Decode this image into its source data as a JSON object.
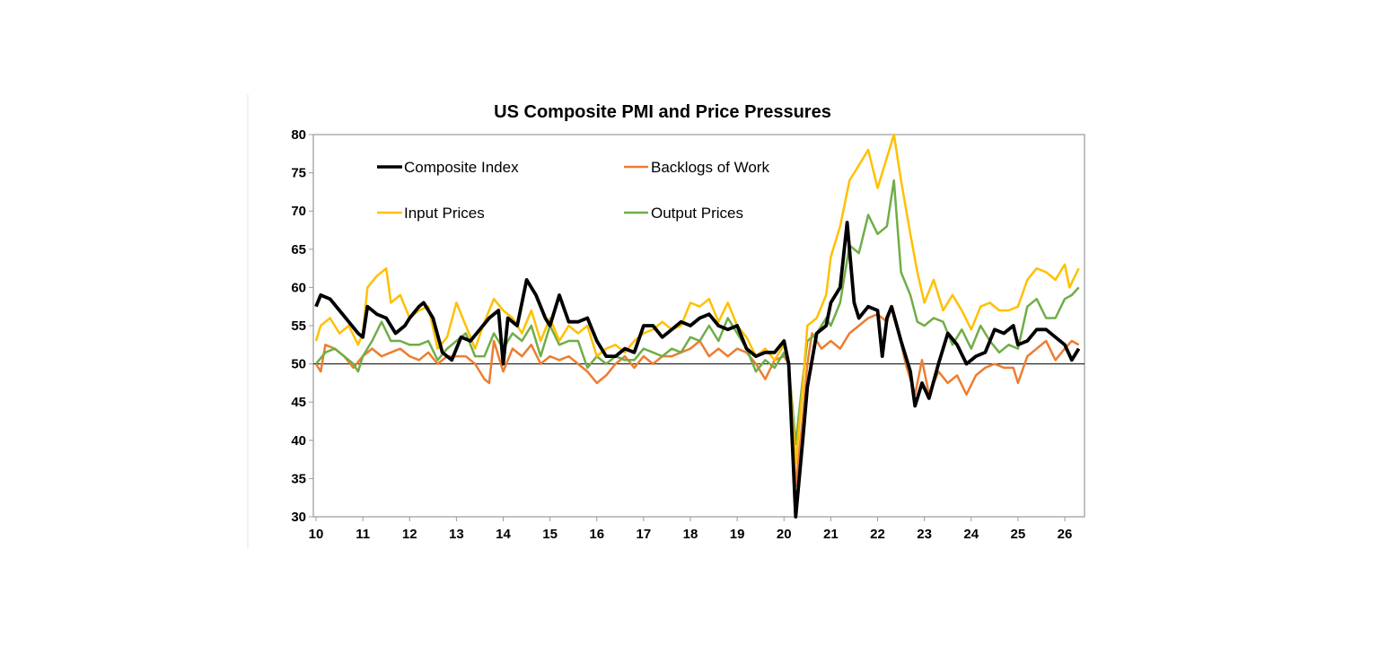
{
  "chart_data": {
    "type": "line",
    "title": "US Composite PMI and Price Pressures",
    "xlabel": "",
    "ylabel": "",
    "xlim": [
      9.94,
      26.4
    ],
    "ylim": [
      30,
      80
    ],
    "x_ticks": [
      "10",
      "11",
      "12",
      "13",
      "14",
      "15",
      "16",
      "17",
      "18",
      "19",
      "20",
      "21",
      "22",
      "23",
      "24",
      "25",
      "26"
    ],
    "y_ticks": [
      "30",
      "35",
      "40",
      "45",
      "50",
      "55",
      "60",
      "65",
      "70",
      "75",
      "80"
    ],
    "reference_line": 50,
    "grid": false,
    "legend_placement": "top-left, inside",
    "series": [
      {
        "name": "Composite Index",
        "color": "#000000",
        "x": [
          10.0,
          10.1,
          10.3,
          10.5,
          10.7,
          10.9,
          11.0,
          11.1,
          11.3,
          11.5,
          11.7,
          11.9,
          12.0,
          12.2,
          12.3,
          12.5,
          12.7,
          12.9,
          13.1,
          13.3,
          13.5,
          13.7,
          13.9,
          14.0,
          14.1,
          14.3,
          14.5,
          14.7,
          14.9,
          15.0,
          15.2,
          15.4,
          15.6,
          15.8,
          16.0,
          16.2,
          16.4,
          16.6,
          16.8,
          17.0,
          17.2,
          17.4,
          17.6,
          17.8,
          18.0,
          18.2,
          18.4,
          18.6,
          18.8,
          19.0,
          19.2,
          19.4,
          19.6,
          19.8,
          20.0,
          20.1,
          20.25,
          20.4,
          20.5,
          20.7,
          20.9,
          21.0,
          21.2,
          21.35,
          21.5,
          21.6,
          21.8,
          22.0,
          22.1,
          22.2,
          22.3,
          22.5,
          22.7,
          22.8,
          22.95,
          23.1,
          23.3,
          23.5,
          23.7,
          23.9,
          24.1,
          24.3,
          24.5,
          24.7,
          24.9,
          25.0,
          25.2,
          25.4,
          25.6,
          25.8,
          26.0,
          26.15,
          26.3
        ],
        "y": [
          57.5,
          59,
          58.5,
          57,
          55.5,
          54,
          53.5,
          57.5,
          56.5,
          56,
          54,
          55,
          56,
          57.5,
          58,
          56,
          51.5,
          50.5,
          53.5,
          53,
          54.5,
          56,
          57,
          50,
          56,
          55,
          61,
          59,
          56,
          55,
          59,
          55.5,
          55.5,
          56,
          53,
          51,
          51,
          52,
          51.5,
          55,
          55,
          53.5,
          54.5,
          55.5,
          55,
          56,
          56.5,
          55,
          54.5,
          55,
          52,
          51,
          51.5,
          51.5,
          53,
          50,
          30,
          40,
          47,
          54,
          55,
          58,
          60,
          68.5,
          58,
          56,
          57.5,
          57,
          51,
          56,
          57.5,
          53,
          49,
          44.5,
          47.5,
          45.5,
          50,
          54,
          52.5,
          50,
          51,
          51.5,
          54.5,
          54,
          55,
          52.5,
          53,
          54.5,
          54.5,
          53.5,
          52.5,
          50.5,
          52
        ]
      },
      {
        "name": "Backlogs of Work",
        "color": "#ED7D31",
        "x": [
          10.0,
          10.1,
          10.2,
          10.4,
          10.6,
          10.8,
          11.0,
          11.2,
          11.4,
          11.6,
          11.8,
          12.0,
          12.2,
          12.4,
          12.6,
          12.8,
          13.0,
          13.2,
          13.4,
          13.6,
          13.7,
          13.8,
          14.0,
          14.2,
          14.4,
          14.6,
          14.8,
          15.0,
          15.2,
          15.4,
          15.6,
          15.8,
          16.0,
          16.2,
          16.4,
          16.6,
          16.8,
          17.0,
          17.2,
          17.4,
          17.6,
          17.8,
          18.0,
          18.2,
          18.4,
          18.6,
          18.8,
          19.0,
          19.2,
          19.4,
          19.6,
          19.8,
          20.0,
          20.1,
          20.25,
          20.4,
          20.5,
          20.6,
          20.8,
          21.0,
          21.2,
          21.4,
          21.6,
          21.8,
          22.0,
          22.2,
          22.3,
          22.4,
          22.6,
          22.8,
          22.95,
          23.1,
          23.3,
          23.5,
          23.7,
          23.9,
          24.1,
          24.3,
          24.5,
          24.7,
          24.9,
          25.0,
          25.2,
          25.4,
          25.6,
          25.8,
          26.0,
          26.15,
          26.3
        ],
        "y": [
          50,
          49,
          52.5,
          52,
          51,
          49.5,
          51,
          52,
          51,
          51.5,
          52,
          51,
          50.5,
          51.5,
          50,
          51,
          51,
          51,
          50,
          48,
          47.5,
          53,
          49,
          52,
          51,
          52.5,
          50,
          51,
          50.5,
          51,
          50,
          49,
          47.5,
          48.5,
          50,
          51,
          49.5,
          51,
          50,
          51,
          51,
          51.5,
          52,
          53,
          51,
          52,
          51,
          52,
          51.5,
          50,
          48,
          50.5,
          51,
          50,
          34,
          43,
          50,
          54,
          52,
          53,
          52,
          54,
          55,
          56,
          56.5,
          55.5,
          57.5,
          55.5,
          50,
          46,
          50.5,
          46,
          49,
          47.5,
          48.5,
          46,
          48.5,
          49.5,
          50,
          49.5,
          49.5,
          47.5,
          51,
          52,
          53,
          50.5,
          52,
          53,
          52.5
        ]
      },
      {
        "name": "Input Prices",
        "color": "#FFC000",
        "x": [
          10.0,
          10.1,
          10.3,
          10.5,
          10.7,
          10.9,
          11.0,
          11.1,
          11.3,
          11.5,
          11.6,
          11.8,
          12.0,
          12.2,
          12.4,
          12.6,
          12.8,
          13.0,
          13.2,
          13.4,
          13.6,
          13.8,
          14.0,
          14.2,
          14.4,
          14.6,
          14.8,
          15.0,
          15.2,
          15.4,
          15.6,
          15.8,
          16.0,
          16.2,
          16.4,
          16.6,
          16.8,
          17.0,
          17.2,
          17.4,
          17.6,
          17.8,
          18.0,
          18.2,
          18.4,
          18.6,
          18.8,
          19.0,
          19.2,
          19.4,
          19.6,
          19.8,
          20.0,
          20.1,
          20.25,
          20.4,
          20.5,
          20.7,
          20.9,
          21.0,
          21.2,
          21.4,
          21.6,
          21.8,
          22.0,
          22.2,
          22.35,
          22.5,
          22.7,
          22.85,
          23.0,
          23.2,
          23.4,
          23.6,
          23.8,
          24.0,
          24.2,
          24.4,
          24.6,
          24.8,
          25.0,
          25.2,
          25.4,
          25.6,
          25.8,
          26.0,
          26.1,
          26.3
        ],
        "y": [
          53,
          55,
          56,
          54,
          55,
          52.5,
          54,
          60,
          61.5,
          62.5,
          58,
          59,
          56,
          57,
          57.5,
          52,
          53.5,
          58,
          55,
          52,
          55.5,
          58.5,
          57,
          56,
          54,
          57,
          53,
          56,
          53,
          55,
          54,
          55,
          51,
          52,
          52.5,
          51.5,
          53,
          54,
          54.5,
          55.5,
          54.5,
          55,
          58,
          57.5,
          58.5,
          55.5,
          58,
          55,
          53.5,
          51,
          52,
          50.5,
          52.5,
          50,
          37,
          47,
          55,
          56,
          59,
          64,
          68,
          74,
          76,
          78,
          73,
          77,
          80,
          74,
          67,
          62,
          58,
          61,
          57,
          59,
          57,
          54.5,
          57.5,
          58,
          57,
          57,
          57.5,
          61,
          62.5,
          62,
          61,
          63,
          60,
          62.5
        ]
      },
      {
        "name": "Output Prices",
        "color": "#70AD47",
        "x": [
          10.0,
          10.2,
          10.4,
          10.6,
          10.8,
          10.9,
          11.0,
          11.2,
          11.4,
          11.6,
          11.8,
          12.0,
          12.2,
          12.4,
          12.6,
          12.8,
          13.0,
          13.2,
          13.4,
          13.6,
          13.8,
          14.0,
          14.2,
          14.4,
          14.6,
          14.8,
          15.0,
          15.2,
          15.4,
          15.6,
          15.8,
          16.0,
          16.2,
          16.4,
          16.6,
          16.8,
          17.0,
          17.2,
          17.4,
          17.6,
          17.8,
          18.0,
          18.2,
          18.4,
          18.6,
          18.8,
          19.0,
          19.2,
          19.4,
          19.6,
          19.8,
          20.0,
          20.1,
          20.25,
          20.4,
          20.5,
          20.7,
          20.9,
          21.0,
          21.2,
          21.4,
          21.6,
          21.8,
          22.0,
          22.2,
          22.35,
          22.5,
          22.7,
          22.85,
          23.0,
          23.2,
          23.4,
          23.6,
          23.8,
          24.0,
          24.2,
          24.4,
          24.6,
          24.8,
          25.0,
          25.2,
          25.4,
          25.6,
          25.8,
          26.0,
          26.15,
          26.3
        ],
        "y": [
          50,
          51.5,
          52,
          51,
          50,
          49,
          51,
          53,
          55.5,
          53,
          53,
          52.5,
          52.5,
          53,
          50.5,
          52,
          53,
          54,
          51,
          51,
          54,
          52,
          54,
          53,
          55,
          51,
          55,
          52.5,
          53,
          53,
          49.5,
          51,
          50,
          51,
          50.5,
          50.5,
          52,
          51.5,
          51,
          52,
          51.5,
          53.5,
          53,
          55,
          53,
          56,
          54,
          52,
          49,
          50.5,
          49.5,
          51.5,
          50,
          39.5,
          48,
          53,
          54,
          56,
          55,
          58,
          65.5,
          64.5,
          69.5,
          67,
          68,
          74,
          62,
          59,
          55.5,
          55,
          56,
          55.5,
          52.5,
          54.5,
          52,
          55,
          53,
          51.5,
          52.5,
          52,
          57.5,
          58.5,
          56,
          56,
          58.5,
          59,
          60
        ]
      }
    ]
  }
}
